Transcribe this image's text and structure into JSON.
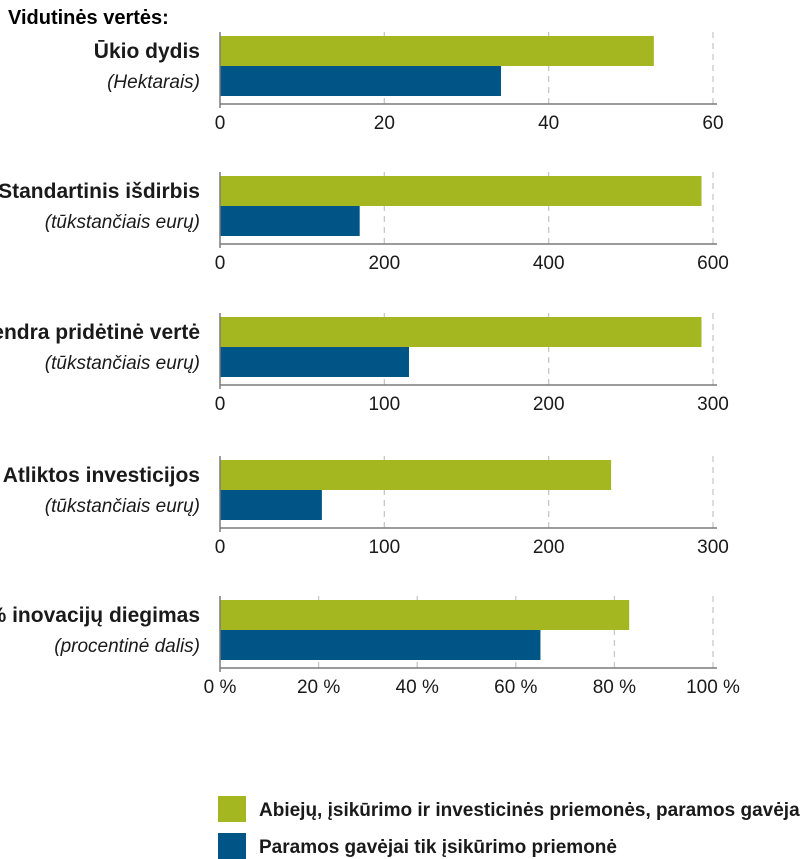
{
  "header": "Vidutinės vertės:",
  "colors": {
    "green": "#a5b720",
    "blue": "#005587",
    "grid": "#c8c8c8",
    "axis": "#7a7a7a"
  },
  "chart_data": [
    {
      "type": "bar",
      "orientation": "horizontal",
      "label": "Ūkio dydis",
      "unit": "(Hektarais)",
      "series": [
        {
          "values": [
            52.8
          ]
        },
        {
          "values": [
            34.2
          ]
        }
      ],
      "xlim": [
        0,
        60
      ],
      "ticks": [
        0,
        20,
        40,
        60
      ],
      "tick_labels": [
        "0",
        "20",
        "40",
        "60"
      ]
    },
    {
      "type": "bar",
      "orientation": "horizontal",
      "label": "Standartinis išdirbis",
      "unit": "(tūkstančiais eurų)",
      "series": [
        {
          "values": [
            586
          ]
        },
        {
          "values": [
            170
          ]
        }
      ],
      "xlim": [
        0,
        600
      ],
      "ticks": [
        0,
        200,
        400,
        600
      ],
      "tick_labels": [
        "0",
        "200",
        "400",
        "600"
      ]
    },
    {
      "type": "bar",
      "orientation": "horizontal",
      "label": "Bendra pridėtinė vertė",
      "unit": "(tūkstančiais eurų)",
      "series": [
        {
          "values": [
            293
          ]
        },
        {
          "values": [
            115
          ]
        }
      ],
      "xlim": [
        0,
        300
      ],
      "ticks": [
        0,
        100,
        200,
        300
      ],
      "tick_labels": [
        "0",
        "100",
        "200",
        "300"
      ]
    },
    {
      "type": "bar",
      "orientation": "horizontal",
      "label": "Atliktos investicijos",
      "unit": "(tūkstančiais eurų)",
      "series": [
        {
          "values": [
            238
          ]
        },
        {
          "values": [
            62
          ]
        }
      ],
      "xlim": [
        0,
        300
      ],
      "ticks": [
        0,
        100,
        200,
        300
      ],
      "tick_labels": [
        "0",
        "100",
        "200",
        "300"
      ]
    },
    {
      "type": "bar",
      "orientation": "horizontal",
      "label": "% inovacijų diegimas",
      "unit": "(procentinė dalis)",
      "series": [
        {
          "values": [
            83
          ]
        },
        {
          "values": [
            65
          ]
        }
      ],
      "xlim": [
        0,
        100
      ],
      "ticks": [
        0,
        20,
        40,
        60,
        80,
        100
      ],
      "tick_labels": [
        "0 %",
        "20 %",
        "40 %",
        "60 %",
        "80 %",
        "100 %"
      ]
    }
  ],
  "legend": [
    {
      "label": "Abiejų, įsikūrimo ir investicinės priemonės, paramos gavėjai",
      "color": "#a5b720"
    },
    {
      "label": "Paramos gavėjai tik įsikūrimo priemonė",
      "color": "#005587"
    }
  ]
}
